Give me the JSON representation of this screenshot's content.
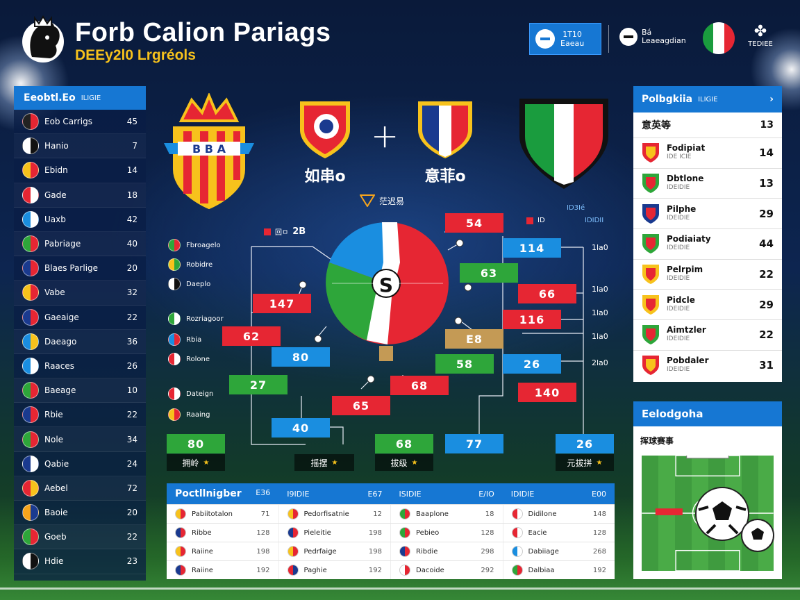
{
  "header": {
    "title": "Forb Calion Pariags",
    "subtitle": "DEEy2l0 Lrgréols",
    "box_line1": "1T10 ",
    "box_line2": "Eaeau",
    "tag_line1": "Bá",
    "tag_line2": "Leaeagdian",
    "menu_label": "TEDIEE"
  },
  "sidebar": {
    "title": "Eeobtl.Eo",
    "title_small": "ILIGIE",
    "items": [
      {
        "name": "Eob Carrigs",
        "value": "45",
        "c1": "#222",
        "c2": "#e62633"
      },
      {
        "name": "Hanio",
        "value": "7",
        "c1": "#ffffff",
        "c2": "#111111"
      },
      {
        "name": "Ebidn",
        "value": "14",
        "c1": "#f7c21c",
        "c2": "#e62633"
      },
      {
        "name": "Gade",
        "value": "18",
        "c1": "#e62633",
        "c2": "#ffffff"
      },
      {
        "name": "Uaxb",
        "value": "42",
        "c1": "#1a8ee0",
        "c2": "#ffffff"
      },
      {
        "name": "Pabriage",
        "value": "40",
        "c1": "#2ea63a",
        "c2": "#e62633"
      },
      {
        "name": "Blaes Parlige",
        "value": "20",
        "c1": "#1a3a8f",
        "c2": "#e62633"
      },
      {
        "name": "Vabe",
        "value": "32",
        "c1": "#f7c21c",
        "c2": "#e62633"
      },
      {
        "name": "Gaeaige",
        "value": "22",
        "c1": "#1a3a8f",
        "c2": "#e62633"
      },
      {
        "name": "Daeago",
        "value": "36",
        "c1": "#1a8ee0",
        "c2": "#f7c21c"
      },
      {
        "name": "Raaces",
        "value": "26",
        "c1": "#1a8ee0",
        "c2": "#ffffff"
      },
      {
        "name": "Baeage",
        "value": "10",
        "c1": "#2ea63a",
        "c2": "#e62633"
      },
      {
        "name": "Rbie",
        "value": "22",
        "c1": "#1a3a8f",
        "c2": "#e62633"
      },
      {
        "name": "Nole",
        "value": "34",
        "c1": "#2ea63a",
        "c2": "#e62633"
      },
      {
        "name": "Qabie",
        "value": "24",
        "c1": "#1a3a8f",
        "c2": "#ffffff"
      },
      {
        "name": "Aebel",
        "value": "72",
        "c1": "#e62633",
        "c2": "#f7c21c"
      },
      {
        "name": "Baoie",
        "value": "20",
        "c1": "#f7a51c",
        "c2": "#1a3a8f"
      },
      {
        "name": "Goeb",
        "value": "22",
        "c1": "#2ea63a",
        "c2": "#e62633"
      },
      {
        "name": "Hdie",
        "value": "23",
        "c1": "#ffffff",
        "c2": "#111111"
      }
    ]
  },
  "center": {
    "team_left": "如串o",
    "team_right": "意菲o",
    "title": "茫迟易"
  },
  "bracket": {
    "left_labels": [
      "Fbroagelo",
      "Robidre",
      "Daeplo",
      "Rozriagoor",
      "Rbia",
      "Rolone",
      "Dateign",
      "Raaing"
    ],
    "chips": [
      "54",
      "114",
      "147",
      "63",
      "62",
      "66",
      "116",
      "80",
      "E8",
      "58",
      "26",
      "27",
      "68",
      "65",
      "140",
      "40",
      "80",
      "68",
      "77",
      "26"
    ],
    "center_badge": "S",
    "right_nums": [
      "1la0",
      "1la0",
      "1la0",
      "1la0",
      "2la0"
    ],
    "score_label": "2B",
    "top_right_tag1": "ID3Ié",
    "top_right_tag2": "IDIDII",
    "tag_left": "回ㅁ",
    "tag_right": "ID",
    "dark_chips": [
      "拥岭",
      "摇摆",
      "拔级",
      "元拔拼"
    ]
  },
  "standings": {
    "title": "Polbgkiia",
    "title_small": "ILIGIE",
    "sub_label": "意英等",
    "sub_value": "13",
    "rows": [
      {
        "name": "Fodipiat",
        "small": "IDE ICIE",
        "value": "14",
        "c1": "#e62633",
        "c2": "#f7c21c"
      },
      {
        "name": "Dbtlone",
        "small": "IDEIDIE",
        "value": "13",
        "c1": "#2ea63a",
        "c2": "#e62633"
      },
      {
        "name": "Pilphe",
        "small": "IDEIDIE",
        "value": "29",
        "c1": "#1a3a8f",
        "c2": "#e62633"
      },
      {
        "name": "Podiaiaty",
        "small": "IDEIDIE",
        "value": "44",
        "c1": "#2ea63a",
        "c2": "#e62633"
      },
      {
        "name": "Pelrpim",
        "small": "IDEIDIE",
        "value": "22",
        "c1": "#f7c21c",
        "c2": "#e62633"
      },
      {
        "name": "Pidcle",
        "small": "IDEIDIE",
        "value": "29",
        "c1": "#f7c21c",
        "c2": "#e62633"
      },
      {
        "name": "Aimtzler",
        "small": "IDEIDIE",
        "value": "22",
        "c1": "#2ea63a",
        "c2": "#e62633"
      },
      {
        "name": "Pobdaler",
        "small": "IDEIDIE",
        "value": "31",
        "c1": "#e62633",
        "c2": "#f7c21c"
      }
    ]
  },
  "pitch": {
    "title": "Eelodgoha",
    "label": "挥球赛事"
  },
  "table": {
    "title": "Poctllnigber",
    "headers": [
      {
        "left": "Poctllnigber",
        "right": "E36"
      },
      {
        "left": "I9IDIE",
        "right": "E67"
      },
      {
        "left": "ISIDIE",
        "right": "E/IO"
      },
      {
        "left": "IDIDIE",
        "right": "E00"
      }
    ],
    "rows": [
      [
        {
          "name": "Pabiitotalon",
          "value": "71",
          "c1": "#f7c21c",
          "c2": "#e62633"
        },
        {
          "name": "Pedorfisatnie",
          "value": "12",
          "c1": "#f7c21c",
          "c2": "#e62633"
        },
        {
          "name": "Baaplone",
          "value": "18",
          "c1": "#2ea63a",
          "c2": "#e62633"
        },
        {
          "name": "Didilone",
          "value": "148",
          "c1": "#e62633",
          "c2": "#ffffff"
        }
      ],
      [
        {
          "name": "Ribbe",
          "value": "128",
          "c1": "#1a3a8f",
          "c2": "#e62633"
        },
        {
          "name": "Pieleitie",
          "value": "198",
          "c1": "#1a3a8f",
          "c2": "#e62633"
        },
        {
          "name": "Pebieo",
          "value": "128",
          "c1": "#2ea63a",
          "c2": "#e62633"
        },
        {
          "name": "Eacie",
          "value": "128",
          "c1": "#e62633",
          "c2": "#ffffff"
        }
      ],
      [
        {
          "name": "Raiine",
          "value": "198",
          "c1": "#f7c21c",
          "c2": "#e62633"
        },
        {
          "name": "Pedrfaige",
          "value": "198",
          "c1": "#f7c21c",
          "c2": "#e62633"
        },
        {
          "name": "Ribdie",
          "value": "298",
          "c1": "#1a3a8f",
          "c2": "#e62633"
        },
        {
          "name": "Dabiiage",
          "value": "268",
          "c1": "#1a8ee0",
          "c2": "#ffffff"
        }
      ],
      [
        {
          "name": "Raiine",
          "value": "192",
          "c1": "#1a3a8f",
          "c2": "#e62633"
        },
        {
          "name": "Paghie",
          "value": "192",
          "c1": "#e62633",
          "c2": "#1a3a8f"
        },
        {
          "name": "Dacoide",
          "value": "292",
          "c1": "#ffffff",
          "c2": "#e62633"
        },
        {
          "name": "Dalbiaa",
          "value": "192",
          "c1": "#2ea63a",
          "c2": "#e62633"
        }
      ]
    ]
  }
}
